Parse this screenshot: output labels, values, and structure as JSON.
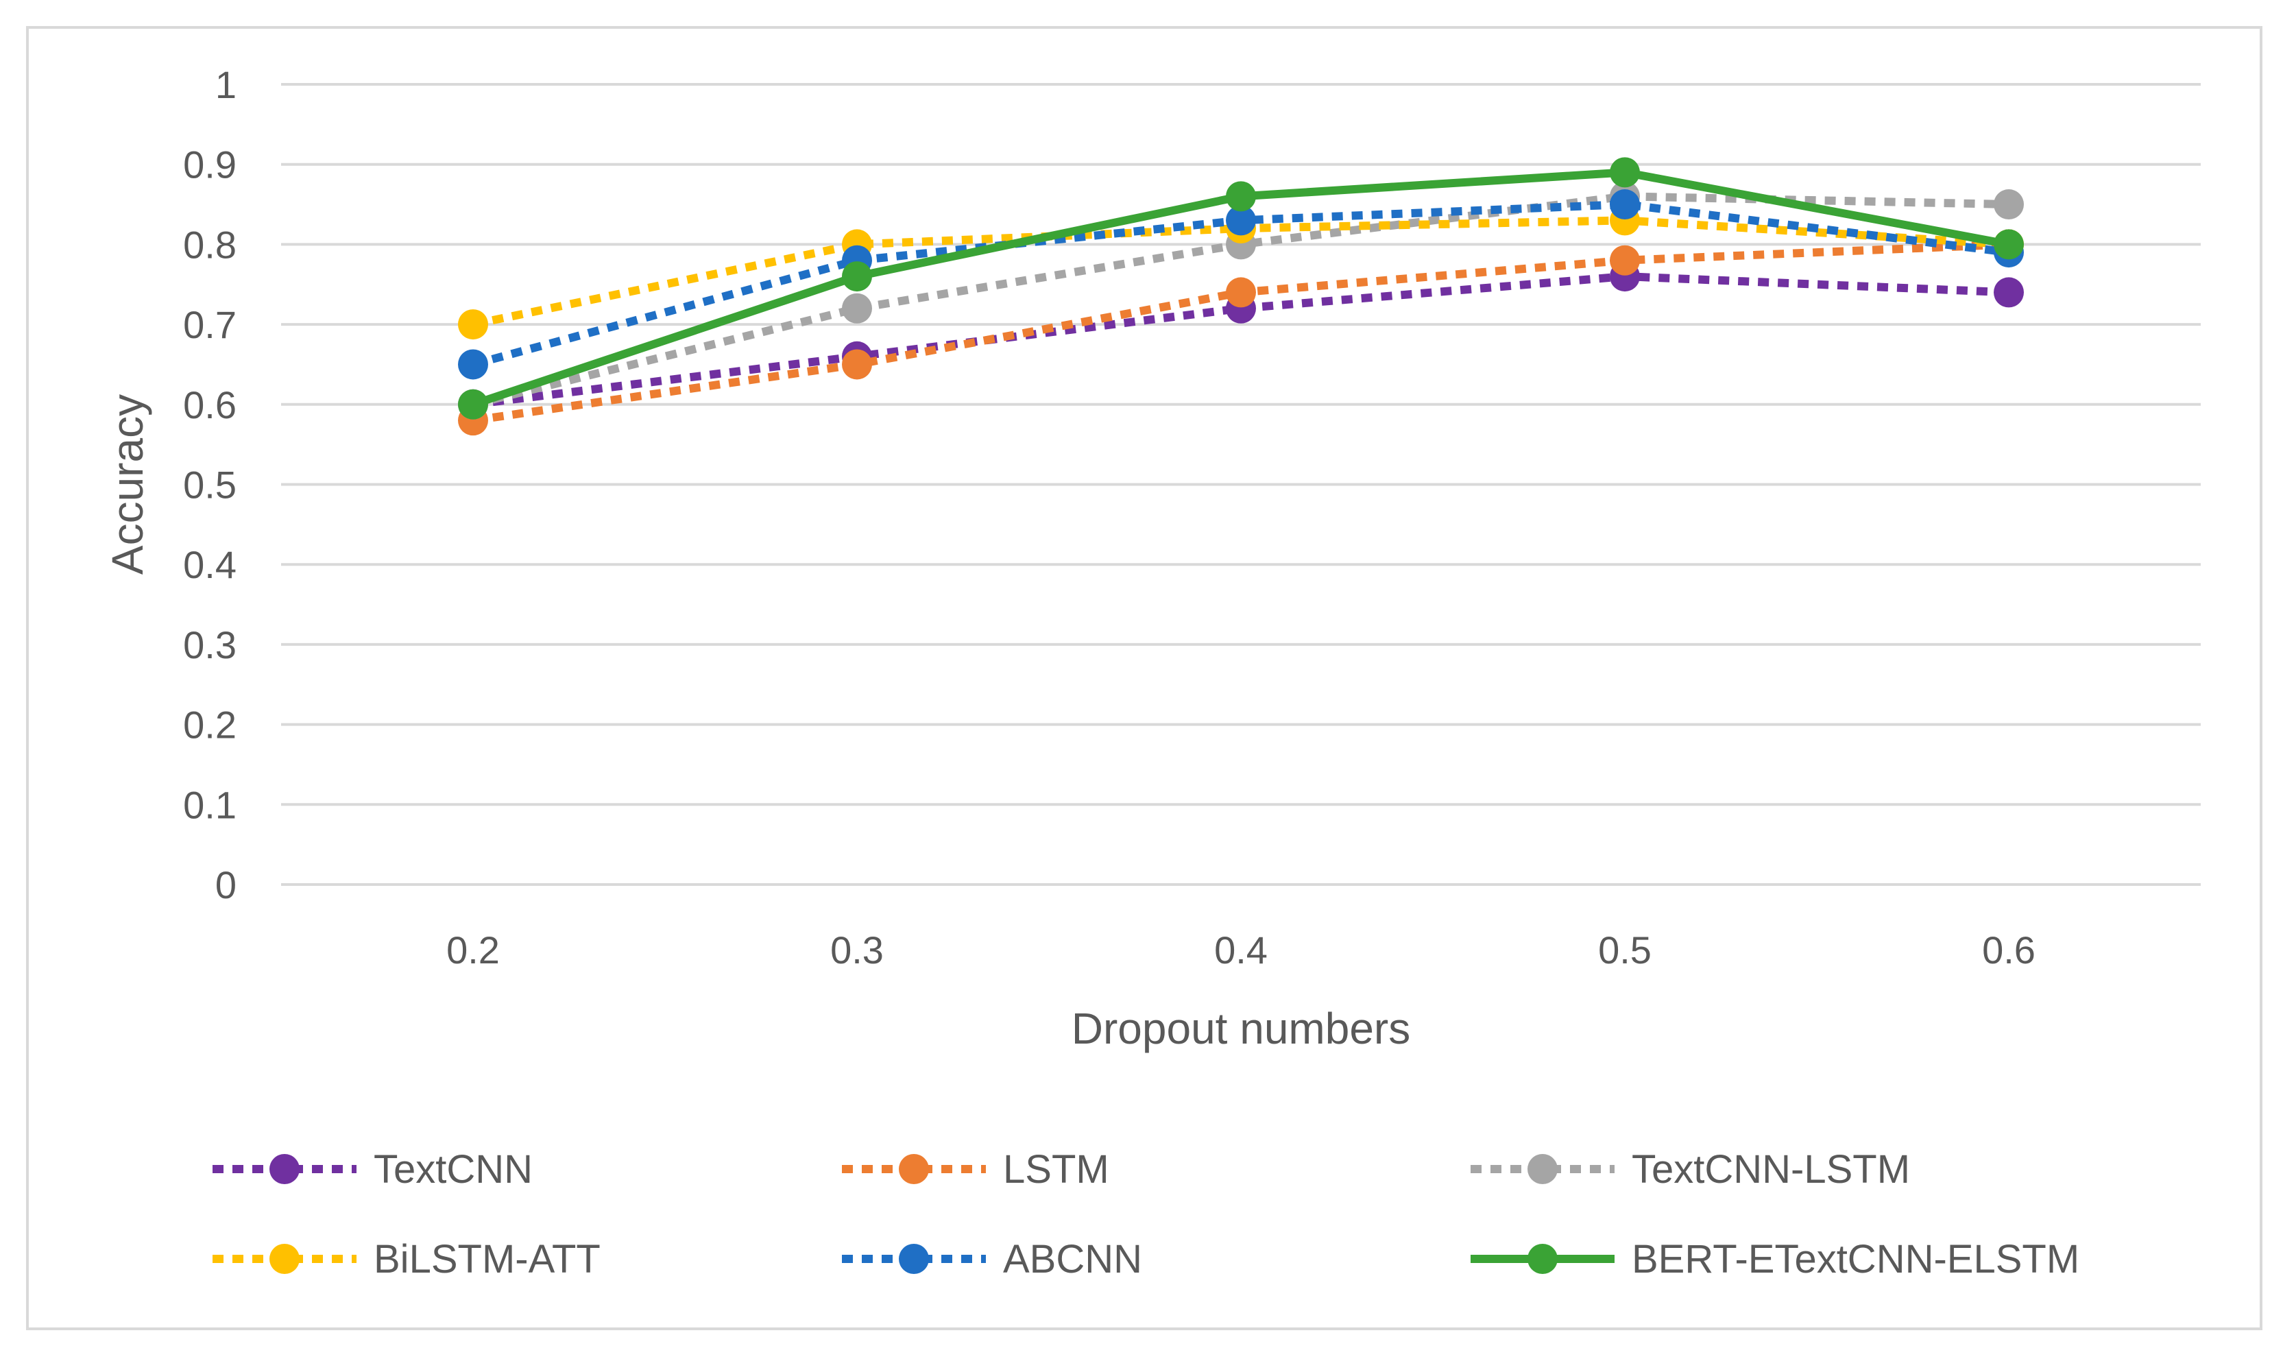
{
  "chart_data": {
    "type": "line",
    "title": "",
    "xlabel": "Dropout numbers",
    "ylabel": "Accuracy",
    "x": [
      "0.2",
      "0.3",
      "0.4",
      "0.5",
      "0.6"
    ],
    "ylim": [
      0,
      1
    ],
    "yticks": [
      "0",
      "0.1",
      "0.2",
      "0.3",
      "0.4",
      "0.5",
      "0.6",
      "0.7",
      "0.8",
      "0.9",
      "1"
    ],
    "grid": true,
    "legend_position": "bottom",
    "series": [
      {
        "name": "TextCNN",
        "values": [
          0.6,
          0.66,
          0.72,
          0.76,
          0.74
        ],
        "color": "#7030a0",
        "style": "dotted"
      },
      {
        "name": "LSTM",
        "values": [
          0.58,
          0.65,
          0.74,
          0.78,
          0.8
        ],
        "color": "#ed7d31",
        "style": "dotted"
      },
      {
        "name": "TextCNN-LSTM",
        "values": [
          0.6,
          0.72,
          0.8,
          0.86,
          0.85
        ],
        "color": "#a5a5a5",
        "style": "dotted"
      },
      {
        "name": "BiLSTM-ATT",
        "values": [
          0.7,
          0.8,
          0.82,
          0.83,
          0.8
        ],
        "color": "#ffc000",
        "style": "dotted"
      },
      {
        "name": "ABCNN",
        "values": [
          0.65,
          0.78,
          0.83,
          0.85,
          0.79
        ],
        "color": "#1f6fc5",
        "style": "dotted"
      },
      {
        "name": "BERT-ETextCNN-ELSTM",
        "values": [
          0.6,
          0.76,
          0.86,
          0.89,
          0.8
        ],
        "color": "#3aa335",
        "style": "solid"
      }
    ]
  }
}
